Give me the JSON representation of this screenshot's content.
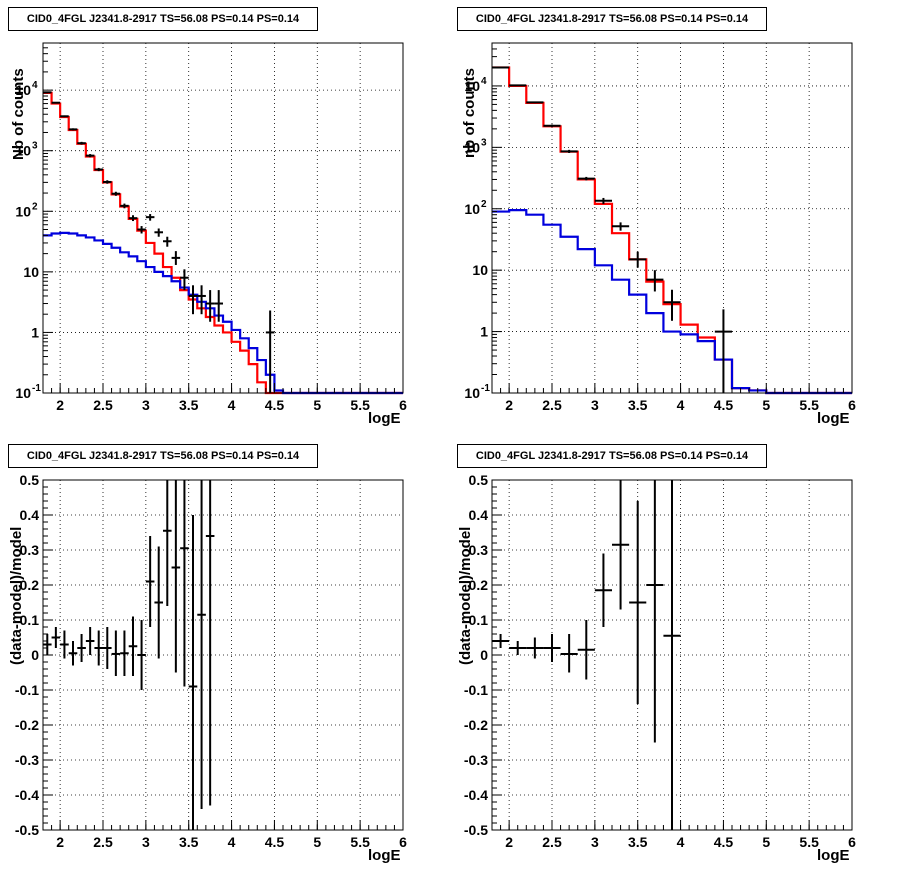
{
  "chart_data": [
    {
      "type": "line",
      "title": "CID0_4FGL J2341.8-2917 TS=56.08 PS=0.14 PS=0.14",
      "xlabel": "logE",
      "ylabel": "Nb of counts",
      "yscale": "log",
      "xlim": [
        1.8,
        6.0
      ],
      "ylim": [
        0.1,
        60000
      ],
      "grid": true,
      "x_ticks": [
        "2",
        "2.5",
        "3",
        "3.5",
        "4",
        "4.5",
        "5",
        "5.5",
        "6"
      ],
      "y_ticks": [
        "10^-1",
        "1",
        "10",
        "10^2",
        "10^3",
        "10^4"
      ],
      "bin_edges": [
        1.8,
        1.9,
        2.0,
        2.1,
        2.2,
        2.3,
        2.4,
        2.5,
        2.6,
        2.7,
        2.8,
        2.9,
        3.0,
        3.1,
        3.2,
        3.3,
        3.4,
        3.5,
        3.6,
        3.7,
        3.8,
        3.9,
        4.0,
        4.1,
        4.2,
        4.3,
        4.4,
        4.5,
        4.6,
        4.7,
        4.8,
        4.9,
        5.0,
        5.1,
        5.2,
        5.3,
        5.4,
        5.5,
        5.6,
        5.7,
        5.8,
        5.9,
        6.0
      ],
      "series": [
        {
          "color": "#ff0000",
          "style": "step",
          "values": [
            9000,
            6000,
            3600,
            2200,
            1300,
            800,
            480,
            300,
            190,
            120,
            75,
            48,
            30,
            20,
            12,
            8,
            5,
            3.5,
            2.5,
            1.8,
            1.3,
            1.0,
            0.7,
            0.5,
            0.3,
            0.15,
            0.1,
            0.1,
            0.1,
            0.1,
            0.1,
            0.1,
            0.1,
            0.1,
            0.1,
            0.1,
            0.1,
            0.1,
            0.1,
            0.1,
            0.1,
            0.1
          ]
        },
        {
          "color": "#0000dd",
          "style": "step",
          "values": [
            40,
            43,
            44,
            43,
            40,
            37,
            33,
            29,
            25,
            21,
            18,
            15,
            12,
            10,
            8.5,
            7,
            5.5,
            4.2,
            3.2,
            2.5,
            1.9,
            1.5,
            1.1,
            0.8,
            0.55,
            0.35,
            0.2,
            0.11,
            0.1,
            0.1,
            0.1,
            0.1,
            0.1,
            0.1,
            0.1,
            0.1,
            0.1,
            0.1,
            0.1,
            0.1,
            0.1,
            0.1
          ]
        },
        {
          "color": "#000000",
          "style": "errorbar",
          "points": [
            {
              "x": 1.85,
              "y": 9200,
              "xerr": 0.05,
              "ylo": 9000,
              "yhi": 9400
            },
            {
              "x": 1.95,
              "y": 6200,
              "xerr": 0.05,
              "ylo": 6050,
              "yhi": 6350
            },
            {
              "x": 2.05,
              "y": 3700,
              "xerr": 0.05,
              "ylo": 3580,
              "yhi": 3820
            },
            {
              "x": 2.15,
              "y": 2250,
              "xerr": 0.05,
              "ylo": 2160,
              "yhi": 2340
            },
            {
              "x": 2.25,
              "y": 1330,
              "xerr": 0.05,
              "ylo": 1260,
              "yhi": 1400
            },
            {
              "x": 2.35,
              "y": 830,
              "xerr": 0.05,
              "ylo": 780,
              "yhi": 880
            },
            {
              "x": 2.45,
              "y": 490,
              "xerr": 0.05,
              "ylo": 460,
              "yhi": 520
            },
            {
              "x": 2.55,
              "y": 305,
              "xerr": 0.05,
              "ylo": 285,
              "yhi": 325
            },
            {
              "x": 2.65,
              "y": 195,
              "xerr": 0.05,
              "ylo": 180,
              "yhi": 210
            },
            {
              "x": 2.75,
              "y": 123,
              "xerr": 0.05,
              "ylo": 112,
              "yhi": 134
            },
            {
              "x": 2.85,
              "y": 77,
              "xerr": 0.05,
              "ylo": 69,
              "yhi": 86
            },
            {
              "x": 2.95,
              "y": 50,
              "xerr": 0.05,
              "ylo": 43,
              "yhi": 57
            },
            {
              "x": 3.05,
              "y": 80,
              "xerr": 0.05,
              "ylo": 70,
              "yhi": 90
            },
            {
              "x": 3.15,
              "y": 45,
              "xerr": 0.05,
              "ylo": 38,
              "yhi": 52
            },
            {
              "x": 3.25,
              "y": 32,
              "xerr": 0.05,
              "ylo": 26,
              "yhi": 38
            },
            {
              "x": 3.35,
              "y": 17,
              "xerr": 0.05,
              "ylo": 13,
              "yhi": 22
            },
            {
              "x": 3.45,
              "y": 8,
              "xerr": 0.05,
              "ylo": 5,
              "yhi": 11
            },
            {
              "x": 3.55,
              "y": 4,
              "xerr": 0.05,
              "ylo": 2,
              "yhi": 6
            },
            {
              "x": 3.65,
              "y": 4,
              "xerr": 0.05,
              "ylo": 2,
              "yhi": 6
            },
            {
              "x": 3.75,
              "y": 3,
              "xerr": 0.05,
              "ylo": 1.5,
              "yhi": 5
            },
            {
              "x": 3.85,
              "y": 3,
              "xerr": 0.05,
              "ylo": 1.5,
              "yhi": 5
            },
            {
              "x": 4.45,
              "y": 1,
              "xerr": 0.05,
              "ylo": 0.1,
              "yhi": 2.3
            }
          ]
        }
      ]
    },
    {
      "type": "line",
      "title": "CID0_4FGL J2341.8-2917 TS=56.08 PS=0.14 PS=0.14",
      "xlabel": "logE",
      "ylabel": "nb of counts",
      "yscale": "log",
      "xlim": [
        1.8,
        6.0
      ],
      "ylim": [
        0.1,
        50000
      ],
      "grid": true,
      "x_ticks": [
        "2",
        "2.5",
        "3",
        "3.5",
        "4",
        "4.5",
        "5",
        "5.5",
        "6"
      ],
      "y_ticks": [
        "10^-1",
        "1",
        "10",
        "10^2",
        "10^3",
        "10^4"
      ],
      "bin_edges": [
        1.8,
        2.0,
        2.2,
        2.4,
        2.6,
        2.8,
        3.0,
        3.2,
        3.4,
        3.6,
        3.8,
        4.0,
        4.2,
        4.4,
        4.6,
        4.8,
        5.0,
        5.2,
        5.4,
        5.6,
        5.8,
        6.0
      ],
      "series": [
        {
          "color": "#ff0000",
          "style": "step",
          "values": [
            20000,
            10000,
            5300,
            2200,
            850,
            300,
            120,
            40,
            15,
            6.5,
            2.8,
            1.3,
            0.8,
            0.35,
            0.12,
            0.11,
            0.1,
            0.1,
            0.1,
            0.1,
            0.1
          ]
        },
        {
          "color": "#0000dd",
          "style": "step",
          "values": [
            90,
            95,
            80,
            55,
            35,
            22,
            12,
            7,
            4,
            2,
            1,
            0.9,
            0.7,
            0.35,
            0.12,
            0.11,
            0.1,
            0.1,
            0.1,
            0.1,
            0.1
          ]
        },
        {
          "color": "#000000",
          "style": "errorbar",
          "points": [
            {
              "x": 1.9,
              "y": 20000,
              "xerr": 0.1,
              "ylo": 19700,
              "yhi": 20300
            },
            {
              "x": 2.1,
              "y": 10200,
              "xerr": 0.1,
              "ylo": 10000,
              "yhi": 10400
            },
            {
              "x": 2.3,
              "y": 5400,
              "xerr": 0.1,
              "ylo": 5250,
              "yhi": 5550
            },
            {
              "x": 2.5,
              "y": 2250,
              "xerr": 0.1,
              "ylo": 2150,
              "yhi": 2350
            },
            {
              "x": 2.7,
              "y": 860,
              "xerr": 0.1,
              "ylo": 810,
              "yhi": 910
            },
            {
              "x": 2.9,
              "y": 310,
              "xerr": 0.1,
              "ylo": 290,
              "yhi": 330
            },
            {
              "x": 3.1,
              "y": 135,
              "xerr": 0.1,
              "ylo": 120,
              "yhi": 150
            },
            {
              "x": 3.3,
              "y": 52,
              "xerr": 0.1,
              "ylo": 44,
              "yhi": 60
            },
            {
              "x": 3.5,
              "y": 15,
              "xerr": 0.1,
              "ylo": 11,
              "yhi": 20
            },
            {
              "x": 3.7,
              "y": 7,
              "xerr": 0.1,
              "ylo": 4.5,
              "yhi": 10
            },
            {
              "x": 3.9,
              "y": 3,
              "xerr": 0.1,
              "ylo": 1.5,
              "yhi": 4.8
            },
            {
              "x": 4.5,
              "y": 1,
              "xerr": 0.1,
              "ylo": 0.1,
              "yhi": 2.3
            }
          ]
        }
      ]
    },
    {
      "type": "scatter",
      "title": "CID0_4FGL J2341.8-2917 TS=56.08 PS=0.14 PS=0.14",
      "xlabel": "logE",
      "ylabel": "(data-model)/model",
      "yscale": "linear",
      "xlim": [
        1.8,
        6.0
      ],
      "ylim": [
        -0.5,
        0.5
      ],
      "grid": true,
      "x_ticks": [
        "2",
        "2.5",
        "3",
        "3.5",
        "4",
        "4.5",
        "5",
        "5.5",
        "6"
      ],
      "y_ticks": [
        "-0.5",
        "-0.4",
        "-0.3",
        "-0.2",
        "-0.1",
        "0",
        "0.1",
        "0.2",
        "0.3",
        "0.4",
        "0.5"
      ],
      "series": [
        {
          "color": "#000000",
          "style": "errorbar",
          "points": [
            {
              "x": 1.85,
              "y": 0.03,
              "xerr": 0.05,
              "ylo": 0.0,
              "yhi": 0.06
            },
            {
              "x": 1.95,
              "y": 0.05,
              "xerr": 0.05,
              "ylo": 0.02,
              "yhi": 0.08
            },
            {
              "x": 2.05,
              "y": 0.03,
              "xerr": 0.05,
              "ylo": -0.01,
              "yhi": 0.07
            },
            {
              "x": 2.15,
              "y": 0.005,
              "xerr": 0.05,
              "ylo": -0.03,
              "yhi": 0.04
            },
            {
              "x": 2.25,
              "y": 0.02,
              "xerr": 0.05,
              "ylo": -0.02,
              "yhi": 0.06
            },
            {
              "x": 2.35,
              "y": 0.04,
              "xerr": 0.05,
              "ylo": 0.0,
              "yhi": 0.08
            },
            {
              "x": 2.45,
              "y": 0.02,
              "xerr": 0.05,
              "ylo": -0.03,
              "yhi": 0.07
            },
            {
              "x": 2.55,
              "y": 0.02,
              "xerr": 0.05,
              "ylo": -0.04,
              "yhi": 0.08
            },
            {
              "x": 2.65,
              "y": 0.003,
              "xerr": 0.05,
              "ylo": -0.06,
              "yhi": 0.07
            },
            {
              "x": 2.75,
              "y": 0.005,
              "xerr": 0.05,
              "ylo": -0.06,
              "yhi": 0.07
            },
            {
              "x": 2.85,
              "y": 0.025,
              "xerr": 0.05,
              "ylo": -0.06,
              "yhi": 0.11
            },
            {
              "x": 2.95,
              "y": 0.0,
              "xerr": 0.05,
              "ylo": -0.1,
              "yhi": 0.1
            },
            {
              "x": 3.05,
              "y": 0.21,
              "xerr": 0.05,
              "ylo": 0.08,
              "yhi": 0.34
            },
            {
              "x": 3.15,
              "y": 0.15,
              "xerr": 0.05,
              "ylo": -0.01,
              "yhi": 0.31
            },
            {
              "x": 3.25,
              "y": 0.355,
              "xerr": 0.05,
              "ylo": 0.14,
              "yhi": 0.5
            },
            {
              "x": 3.35,
              "y": 0.25,
              "xerr": 0.05,
              "ylo": -0.05,
              "yhi": 0.5
            },
            {
              "x": 3.45,
              "y": 0.305,
              "xerr": 0.05,
              "ylo": -0.09,
              "yhi": 0.5
            },
            {
              "x": 3.55,
              "y": -0.09,
              "xerr": 0.05,
              "ylo": -0.5,
              "yhi": 0.4
            },
            {
              "x": 3.65,
              "y": 0.115,
              "xerr": 0.05,
              "ylo": -0.44,
              "yhi": 0.5
            },
            {
              "x": 3.75,
              "y": 0.34,
              "xerr": 0.05,
              "ylo": -0.43,
              "yhi": 0.5
            }
          ]
        }
      ]
    },
    {
      "type": "scatter",
      "title": "CID0_4FGL J2341.8-2917 TS=56.08 PS=0.14 PS=0.14",
      "xlabel": "logE",
      "ylabel": "(data-model)/model",
      "yscale": "linear",
      "xlim": [
        1.8,
        6.0
      ],
      "ylim": [
        -0.5,
        0.5
      ],
      "grid": true,
      "x_ticks": [
        "2",
        "2.5",
        "3",
        "3.5",
        "4",
        "4.5",
        "5",
        "5.5",
        "6"
      ],
      "y_ticks": [
        "-0.5",
        "-0.4",
        "-0.3",
        "-0.2",
        "-0.1",
        "0",
        "0.1",
        "0.2",
        "0.3",
        "0.4",
        "0.5"
      ],
      "series": [
        {
          "color": "#000000",
          "style": "errorbar",
          "points": [
            {
              "x": 1.9,
              "y": 0.04,
              "xerr": 0.1,
              "ylo": 0.02,
              "yhi": 0.06
            },
            {
              "x": 2.1,
              "y": 0.02,
              "xerr": 0.1,
              "ylo": 0.0,
              "yhi": 0.04
            },
            {
              "x": 2.3,
              "y": 0.02,
              "xerr": 0.1,
              "ylo": -0.01,
              "yhi": 0.05
            },
            {
              "x": 2.5,
              "y": 0.02,
              "xerr": 0.1,
              "ylo": -0.02,
              "yhi": 0.06
            },
            {
              "x": 2.7,
              "y": 0.003,
              "xerr": 0.1,
              "ylo": -0.05,
              "yhi": 0.06
            },
            {
              "x": 2.9,
              "y": 0.015,
              "xerr": 0.1,
              "ylo": -0.07,
              "yhi": 0.1
            },
            {
              "x": 3.1,
              "y": 0.185,
              "xerr": 0.1,
              "ylo": 0.08,
              "yhi": 0.29
            },
            {
              "x": 3.3,
              "y": 0.315,
              "xerr": 0.1,
              "ylo": 0.13,
              "yhi": 0.5
            },
            {
              "x": 3.5,
              "y": 0.15,
              "xerr": 0.1,
              "ylo": -0.14,
              "yhi": 0.44
            },
            {
              "x": 3.7,
              "y": 0.2,
              "xerr": 0.1,
              "ylo": -0.25,
              "yhi": 0.5
            },
            {
              "x": 3.9,
              "y": 0.055,
              "xerr": 0.1,
              "ylo": -0.5,
              "yhi": 0.5
            }
          ]
        }
      ]
    }
  ]
}
